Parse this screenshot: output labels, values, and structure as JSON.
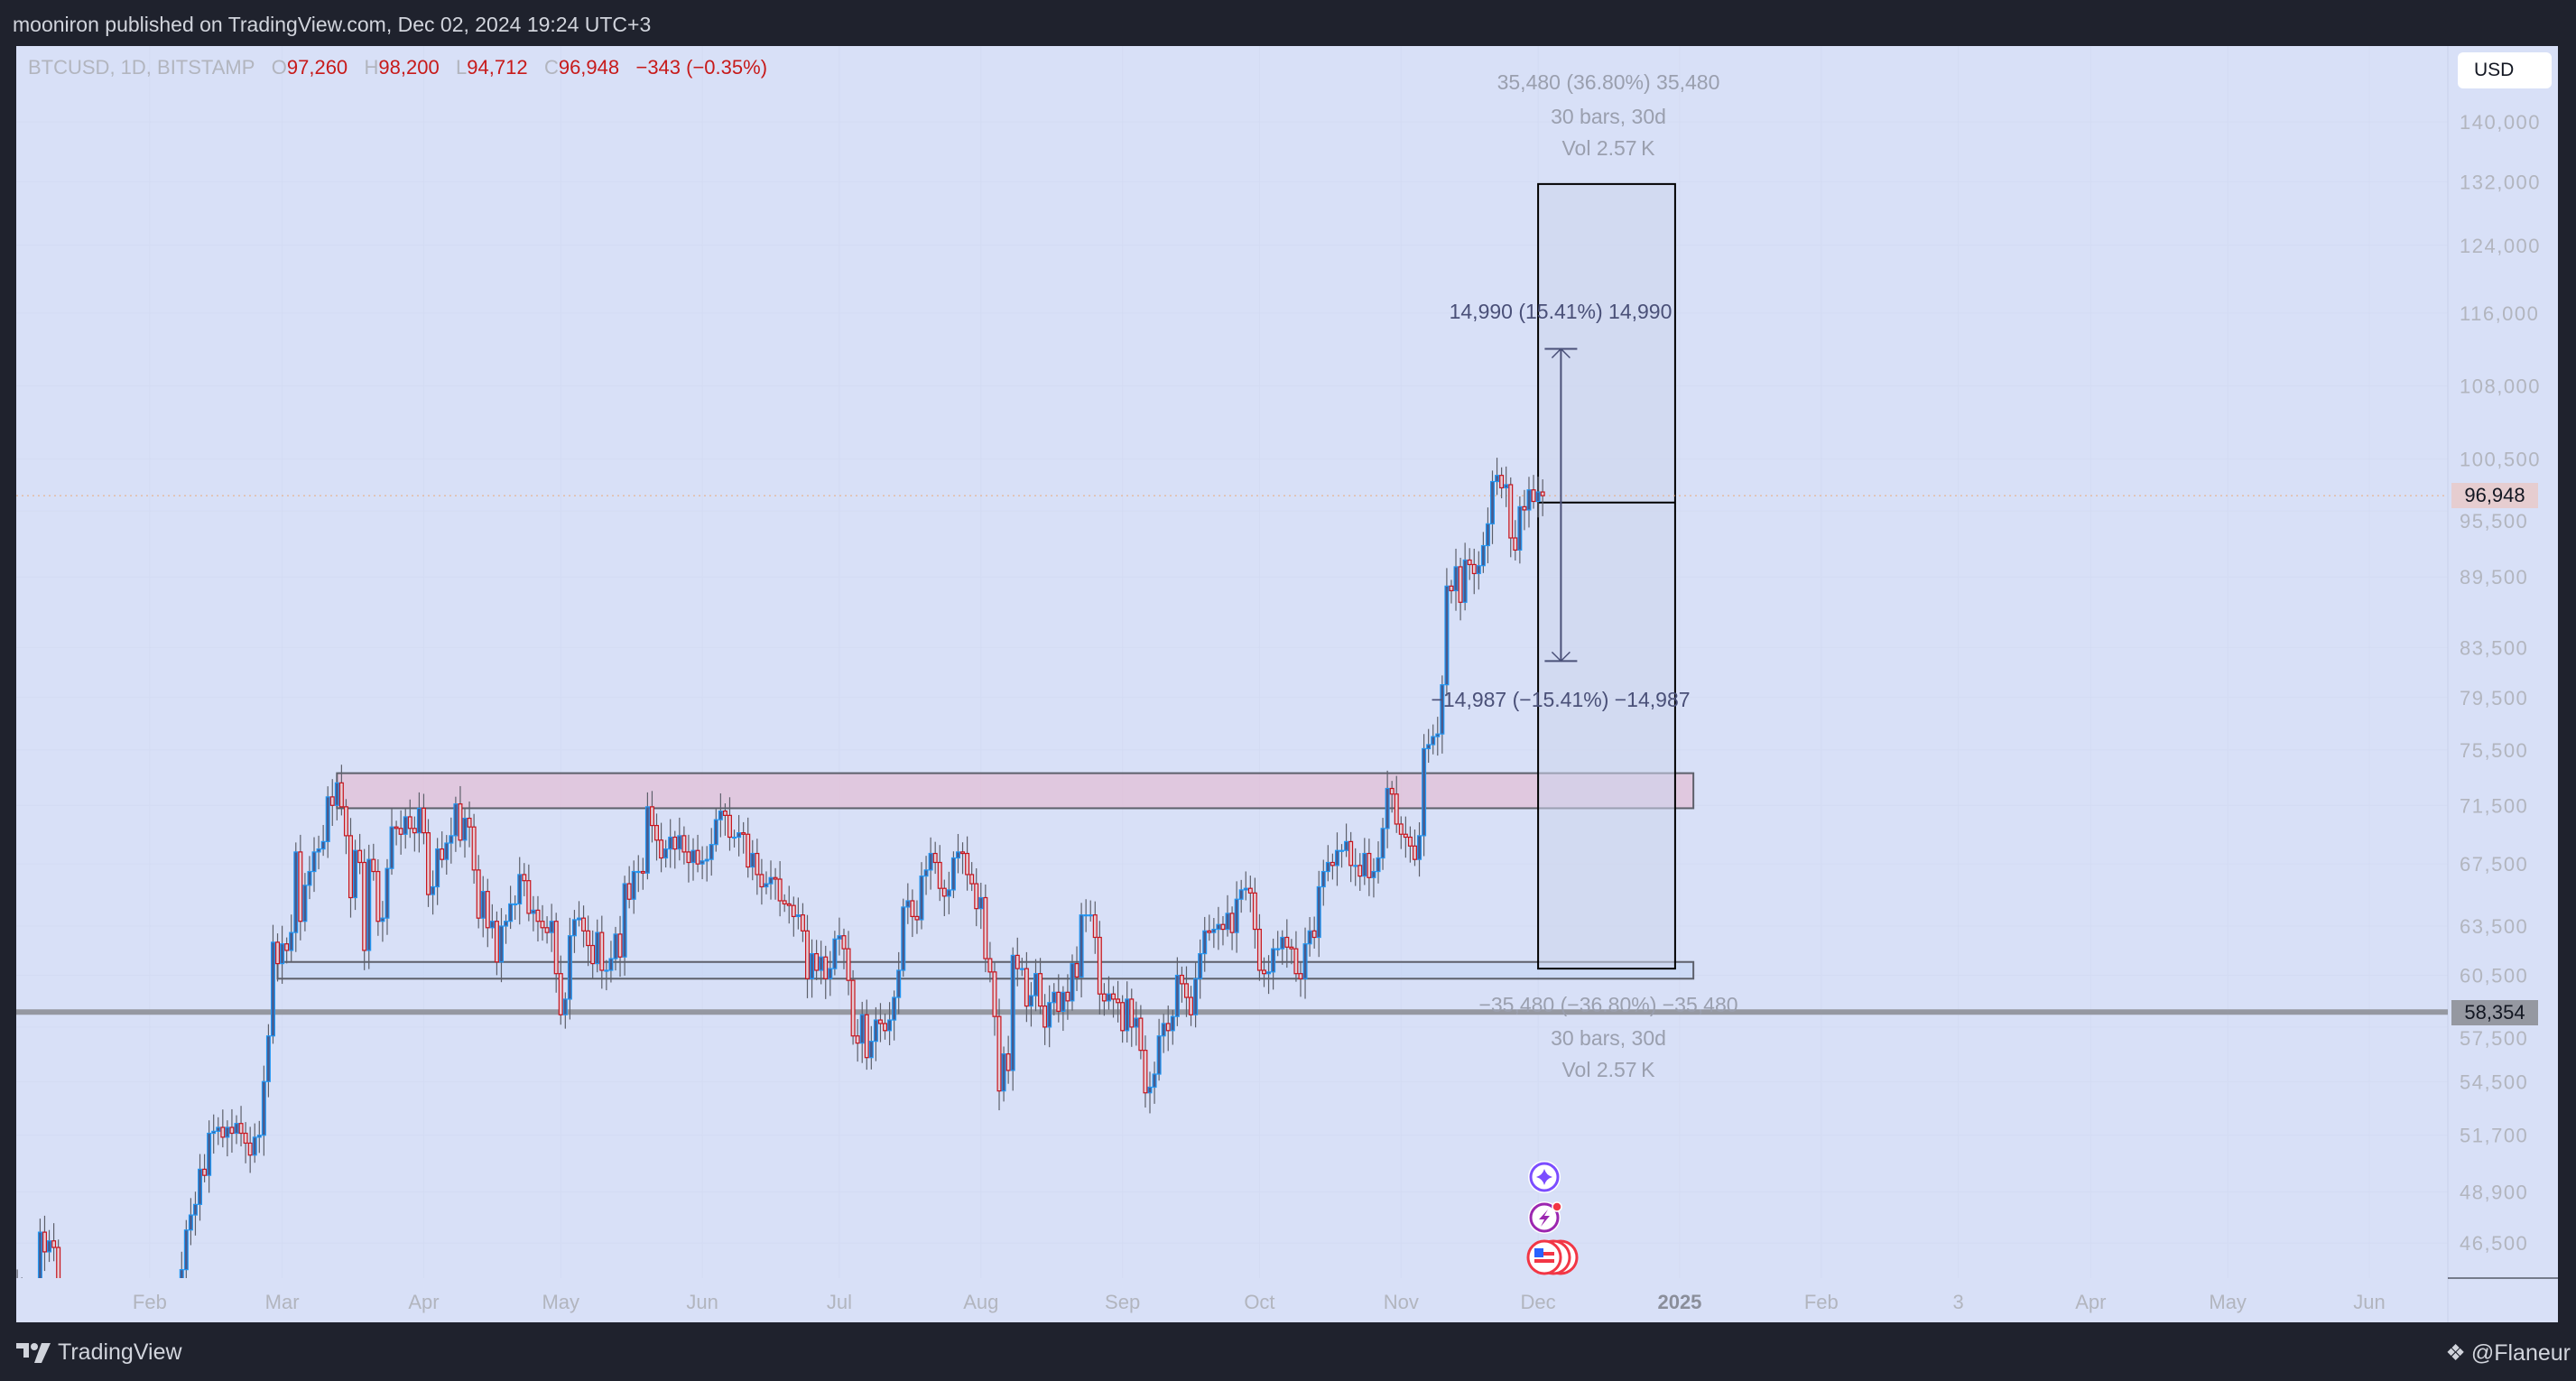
{
  "header": {
    "published": "mooniron published on TradingView.com, Dec 02, 2024 19:24 UTC+3"
  },
  "legend": {
    "symbol": "BTCUSD, 1D, BITSTAMP",
    "o_label": "O",
    "o": "97,260",
    "h_label": "H",
    "h": "98,200",
    "l_label": "L",
    "l": "94,712",
    "c_label": "C",
    "c": "96,948",
    "change": "−343 (−0.35%)"
  },
  "price_axis": {
    "currency": "USD",
    "labels": [
      "140,000",
      "132,000",
      "124,000",
      "116,000",
      "108,000",
      "100,500",
      "95,500",
      "89,500",
      "83,500",
      "79,500",
      "75,500",
      "71,500",
      "67,500",
      "63,500",
      "60,500",
      "57,500",
      "54,500",
      "51,700",
      "48,900",
      "46,500"
    ],
    "last_price_tag": "96,948",
    "line_tag": "58,354"
  },
  "time_axis": {
    "labels": [
      "Feb",
      "Mar",
      "Apr",
      "May",
      "Jun",
      "Jul",
      "Aug",
      "Sep",
      "Oct",
      "Nov",
      "Dec",
      "2025",
      "Feb",
      "3",
      "Apr",
      "May",
      "Jun"
    ]
  },
  "measurements": {
    "up_range": "35,480 (36.80%) 35,480",
    "up_bars": "30 bars, 30d",
    "up_vol": "Vol 2.57 K",
    "down_range": "−35,480 (−36.80%) −35,480",
    "down_bars": "30 bars, 30d",
    "down_vol": "Vol 2.57 K",
    "arrow_up": "14,990 (15.41%) 14,990",
    "arrow_down": "−14,987 (−15.41%) −14,987"
  },
  "footer": {
    "brand": "TradingView",
    "author": "@Flaneur"
  },
  "colors": {
    "up_border": "#2196f3",
    "up_fill": "#4a5a8c",
    "down_border": "#c8141c",
    "down_fill": "#e3cdd6",
    "wick": "#5d606b",
    "background": "#d8e0f7"
  },
  "chart_data": {
    "type": "candlestick",
    "scale": "log",
    "title": "BTCUSD, 1D, BITSTAMP",
    "start_date": "2024-01-01",
    "close_usd_thousands": [
      44.2,
      44.9,
      42.8,
      44.2,
      44.2,
      44.0,
      43.9,
      47.0,
      46.1,
      46.6,
      46.3,
      42.8,
      42.8,
      41.7,
      42.5,
      43.1,
      42.7,
      41.3,
      41.6,
      41.7,
      41.6,
      39.5,
      39.9,
      40.1,
      40.0,
      41.8,
      42.1,
      42.0,
      43.3,
      42.9,
      42.6,
      43.1,
      43.2,
      43.0,
      42.6,
      42.7,
      43.1,
      44.3,
      45.3,
      47.1,
      47.8,
      48.3,
      50.0,
      49.7,
      51.8,
      51.9,
      52.1,
      51.6,
      52.1,
      51.8,
      52.3,
      51.8,
      51.3,
      50.7,
      51.6,
      51.7,
      54.5,
      57.0,
      62.5,
      61.2,
      62.4,
      62.0,
      63.1,
      68.3,
      63.8,
      66.1,
      67.0,
      68.3,
      68.5,
      69.0,
      72.1,
      71.5,
      73.1,
      71.4,
      69.4,
      65.3,
      68.4,
      67.6,
      62.0,
      67.8,
      67.0,
      63.8,
      64.0,
      67.2,
      70.0,
      69.9,
      69.5,
      70.7,
      69.9,
      69.6,
      71.3,
      69.6,
      65.5,
      66.0,
      68.5,
      67.8,
      68.9,
      69.4,
      71.6,
      69.1,
      70.6,
      70.0,
      67.1,
      64.0,
      65.7,
      63.4,
      63.8,
      61.3,
      63.5,
      63.8,
      64.9,
      64.9,
      66.8,
      66.4,
      64.3,
      64.5,
      63.8,
      63.4,
      63.1,
      63.8,
      60.6,
      58.2,
      59.1,
      62.9,
      63.9,
      64.0,
      63.2,
      62.3,
      61.2,
      63.1,
      60.8,
      60.8,
      61.5,
      63.0,
      61.6,
      66.2,
      65.2,
      67.0,
      67.0,
      66.9,
      71.4,
      70.1,
      69.1,
      67.9,
      68.5,
      69.3,
      68.5,
      69.4,
      68.3,
      67.6,
      68.4,
      67.5,
      67.7,
      67.8,
      68.8,
      70.5,
      71.1,
      70.8,
      69.3,
      69.3,
      69.6,
      69.5,
      67.3,
      68.2,
      66.8,
      66.0,
      66.2,
      66.6,
      66.5,
      65.1,
      64.9,
      64.8,
      64.1,
      64.2,
      63.2,
      60.3,
      61.8,
      60.8,
      61.6,
      60.3,
      60.9,
      62.7,
      62.9,
      62.1,
      60.2,
      57.0,
      56.6,
      58.2,
      55.8,
      56.7,
      57.9,
      57.7,
      57.3,
      57.9,
      59.2,
      60.8,
      64.7,
      65.1,
      64.1,
      63.9,
      66.7,
      67.1,
      68.2,
      67.6,
      65.9,
      65.4,
      65.8,
      67.9,
      68.3,
      68.2,
      66.8,
      66.2,
      64.6,
      65.3,
      61.5,
      60.7,
      58.1,
      54.0,
      56.0,
      55.1,
      61.7,
      60.9,
      60.9,
      58.7,
      59.3,
      60.6,
      58.7,
      57.5,
      58.9,
      59.5,
      58.4,
      59.5,
      59.0,
      61.2,
      60.4,
      64.2,
      64.2,
      64.2,
      62.8,
      59.4,
      59.0,
      59.4,
      59.1,
      58.9,
      57.3,
      59.1,
      57.5,
      58.0,
      56.2,
      53.9,
      54.2,
      54.9,
      57.0,
      57.7,
      57.3,
      58.1,
      60.5,
      60.0,
      59.2,
      58.2,
      60.3,
      61.8,
      63.2,
      63.1,
      63.3,
      63.6,
      63.3,
      64.3,
      63.1,
      65.2,
      65.8,
      65.9,
      65.6,
      63.3,
      60.8,
      60.6,
      60.7,
      62.1,
      62.1,
      62.8,
      62.2,
      62.1,
      60.6,
      60.3,
      62.4,
      63.2,
      62.8,
      66.0,
      67.0,
      67.6,
      67.4,
      68.4,
      68.4,
      69.0,
      67.4,
      67.4,
      66.7,
      68.2,
      66.6,
      67.0,
      67.9,
      69.9,
      72.7,
      72.3,
      70.2,
      69.5,
      69.3,
      68.7,
      67.8,
      69.4,
      75.6,
      75.9,
      76.5,
      76.7,
      80.5,
      88.7,
      88.3,
      90.4,
      87.3,
      91.0,
      90.6,
      89.8,
      90.5,
      92.3,
      94.3,
      98.3,
      98.9,
      97.7,
      98.0,
      93.0,
      91.9,
      95.9,
      95.6,
      97.5,
      96.4,
      97.3,
      96.948
    ],
    "y_ticks": [
      140000,
      132000,
      124000,
      116000,
      108000,
      100500,
      95500,
      89500,
      83500,
      79500,
      75500,
      71500,
      67500,
      63500,
      60500,
      57500,
      54500,
      51700,
      48900,
      46500
    ],
    "x_tick_day_index": [
      31,
      60,
      91,
      121,
      152,
      182,
      213,
      244,
      274,
      305,
      335,
      366,
      397,
      427,
      456,
      486,
      517
    ],
    "last_price": 96948,
    "horizontal_line": 58354,
    "resistance_zone": [
      71300,
      73800
    ],
    "support_zone": [
      60300,
      61300
    ],
    "zones_start_day_index": [
      72,
      59
    ],
    "zones_end_day_index": 369,
    "projection_box": {
      "start_day_index": 335,
      "end_day_index": 365,
      "top": 131700,
      "entry": 96300,
      "bottom": 60900
    },
    "arrow": {
      "day_index": 340,
      "top": 112000,
      "bottom": 82400
    }
  }
}
